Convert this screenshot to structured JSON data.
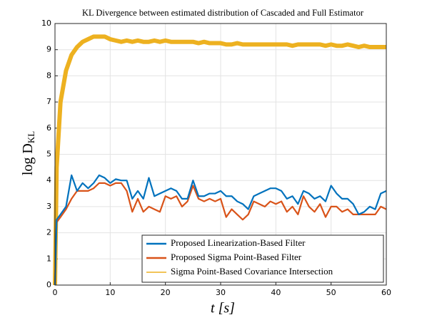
{
  "chart_data": {
    "type": "line",
    "title": "KL Divergence between estimated distribution of Cascaded and Full Estimator",
    "xlabel": "t [s]",
    "ylabel": "log D",
    "ylabel_subscript": "KL",
    "x": [
      0,
      0.3,
      1,
      2,
      3,
      4,
      5,
      6,
      7,
      8,
      9,
      10,
      11,
      12,
      13,
      14,
      15,
      16,
      17,
      18,
      19,
      20,
      21,
      22,
      23,
      24,
      25,
      26,
      27,
      28,
      29,
      30,
      31,
      32,
      33,
      34,
      35,
      36,
      37,
      38,
      39,
      40,
      41,
      42,
      43,
      44,
      45,
      46,
      47,
      48,
      49,
      50,
      51,
      52,
      53,
      54,
      55,
      56,
      57,
      58,
      59,
      60
    ],
    "series": [
      {
        "name": "Proposed Linearization-Based Filter",
        "color": "#0072bd",
        "values": [
          0,
          2.5,
          2.7,
          3.0,
          4.2,
          3.6,
          3.9,
          3.7,
          3.9,
          4.2,
          4.1,
          3.9,
          4.05,
          4.0,
          4.0,
          3.3,
          3.6,
          3.3,
          4.1,
          3.4,
          3.5,
          3.6,
          3.7,
          3.6,
          3.3,
          3.3,
          4.0,
          3.4,
          3.4,
          3.5,
          3.5,
          3.6,
          3.4,
          3.4,
          3.2,
          3.1,
          2.9,
          3.4,
          3.5,
          3.6,
          3.7,
          3.7,
          3.6,
          3.3,
          3.4,
          3.1,
          3.6,
          3.5,
          3.3,
          3.4,
          3.2,
          3.8,
          3.5,
          3.3,
          3.3,
          3.1,
          2.7,
          2.8,
          3.0,
          2.9,
          3.5,
          3.6
        ]
      },
      {
        "name": "Proposed Sigma Point-Based Filter",
        "color": "#d95319",
        "values": [
          0,
          2.4,
          2.6,
          2.9,
          3.3,
          3.6,
          3.6,
          3.6,
          3.7,
          3.9,
          3.9,
          3.8,
          3.9,
          3.9,
          3.6,
          2.8,
          3.3,
          2.8,
          3.0,
          2.9,
          2.8,
          3.4,
          3.3,
          3.4,
          3.0,
          3.2,
          3.8,
          3.3,
          3.2,
          3.3,
          3.2,
          3.3,
          2.6,
          2.9,
          2.7,
          2.5,
          2.7,
          3.2,
          3.1,
          3.0,
          3.2,
          3.1,
          3.2,
          2.8,
          3.0,
          2.7,
          3.4,
          3.0,
          2.8,
          3.1,
          2.6,
          3.0,
          3.0,
          2.8,
          2.9,
          2.7,
          2.7,
          2.7,
          2.7,
          2.7,
          3.0,
          2.9
        ]
      },
      {
        "name": "Sigma Point-Based Covariance Intersection",
        "color": "#edb120",
        "values": [
          0,
          4.5,
          7.0,
          8.2,
          8.8,
          9.1,
          9.3,
          9.4,
          9.5,
          9.5,
          9.5,
          9.4,
          9.35,
          9.3,
          9.35,
          9.3,
          9.35,
          9.3,
          9.3,
          9.35,
          9.3,
          9.35,
          9.3,
          9.3,
          9.3,
          9.3,
          9.3,
          9.25,
          9.3,
          9.25,
          9.25,
          9.25,
          9.2,
          9.2,
          9.25,
          9.2,
          9.2,
          9.2,
          9.2,
          9.2,
          9.2,
          9.2,
          9.2,
          9.2,
          9.15,
          9.2,
          9.2,
          9.2,
          9.2,
          9.2,
          9.15,
          9.2,
          9.15,
          9.15,
          9.2,
          9.15,
          9.1,
          9.15,
          9.1,
          9.1,
          9.1,
          9.1
        ]
      }
    ],
    "xlim": [
      0,
      60
    ],
    "xticks": [
      0,
      10,
      20,
      30,
      40,
      50,
      60
    ],
    "ylim": [
      0,
      10
    ],
    "yticks": [
      0,
      1,
      2,
      3,
      4,
      5,
      6,
      7,
      8,
      9,
      10
    ],
    "grid": true,
    "legend": "lower right"
  }
}
